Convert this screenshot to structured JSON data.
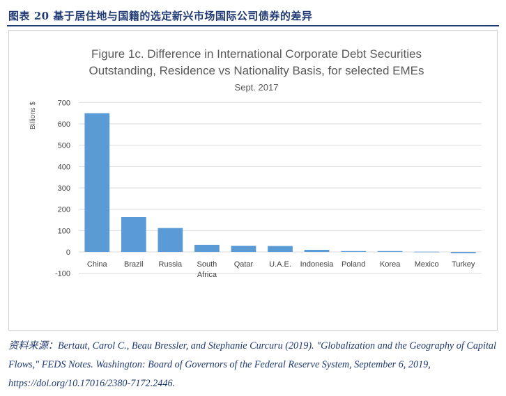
{
  "header": {
    "title": "图表 20 基于居住地与国籍的选定新兴市场国际公司债券的差异"
  },
  "chart_data": {
    "type": "bar",
    "title_lines": [
      "Figure 1c.  Difference in International Corporate Debt Securities",
      "Outstanding, Residence vs Nationality Basis, for selected EMEs"
    ],
    "subtitle": "Sept. 2017",
    "xlabel": "",
    "ylabel": "Billions $",
    "categories": [
      "China",
      "Brazil",
      "Russia",
      "South Africa",
      "Qatar",
      "U.A.E.",
      "Indonesia",
      "Poland",
      "Korea",
      "Mexico",
      "Turkey"
    ],
    "category_lines": [
      [
        "China"
      ],
      [
        "Brazil"
      ],
      [
        "Russia"
      ],
      [
        "South",
        "Africa"
      ],
      [
        "Qatar"
      ],
      [
        "U.A.E."
      ],
      [
        "Indonesia"
      ],
      [
        "Poland"
      ],
      [
        "Korea"
      ],
      [
        "Mexico"
      ],
      [
        "Turkey"
      ]
    ],
    "values": [
      650,
      163,
      112,
      33,
      29,
      28,
      10,
      4,
      4,
      1,
      -6
    ],
    "yticks": [
      700,
      600,
      500,
      400,
      300,
      200,
      100,
      0,
      -100
    ],
    "ylim": [
      -100,
      700
    ],
    "grid": true,
    "bar_color": "#5b9bd5"
  },
  "source": {
    "text": "资料来源：Bertaut, Carol C., Beau Bressler, and Stephanie Curcuru (2019). \"Globalization and the Geography of Capital Flows,\" FEDS Notes. Washington: Board of Governors of the Federal Reserve System, September 6, 2019, https://doi.org/10.17016/2380-7172.2446."
  }
}
